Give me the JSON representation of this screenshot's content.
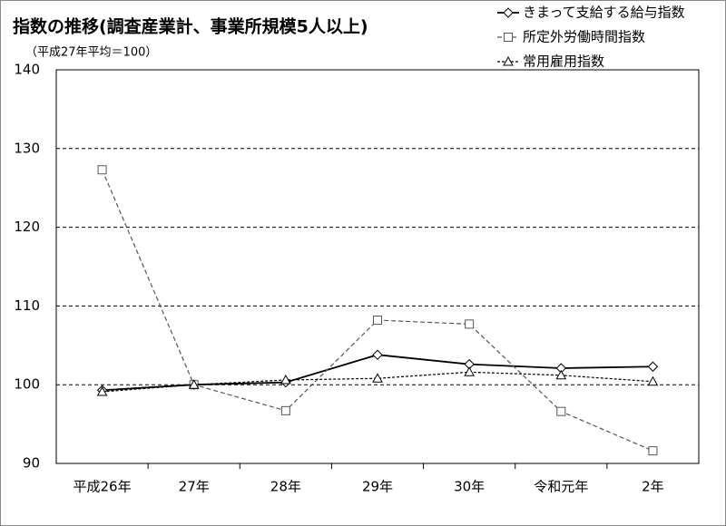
{
  "chart_data": {
    "type": "line",
    "title": "指数の推移(調査産業計、事業所規模5人以上)",
    "subtitle": "（平成27年平均＝100）",
    "categories": [
      "平成26年",
      "27年",
      "28年",
      "29年",
      "30年",
      "令和元年",
      "2年"
    ],
    "series": [
      {
        "name": "きまって支給する給与指数",
        "color": "#000000",
        "marker": "diamond",
        "dash": "solid",
        "values": [
          99.3,
          100,
          100.3,
          103.8,
          102.6,
          102.1,
          102.3
        ]
      },
      {
        "name": "所定外労働時間指数",
        "color": "#555555",
        "marker": "square",
        "dash": "long",
        "values": [
          127.3,
          100,
          96.7,
          108.2,
          107.7,
          96.6,
          91.6
        ]
      },
      {
        "name": "常用雇用指数",
        "color": "#000000",
        "marker": "triangle",
        "dash": "short",
        "values": [
          99.1,
          100,
          100.6,
          100.8,
          101.6,
          101.2,
          100.4
        ]
      }
    ],
    "ylim": [
      90,
      140
    ],
    "yticks": [
      90,
      100,
      110,
      120,
      130,
      140
    ],
    "grid": true
  }
}
